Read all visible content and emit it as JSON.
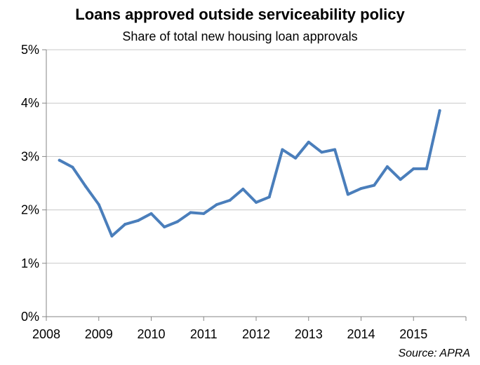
{
  "chart_data": {
    "type": "line",
    "title": "Loans approved outside serviceability policy",
    "subtitle": "Share of total new housing loan approvals",
    "source": "Source: APRA",
    "xlabel": "",
    "ylabel": "",
    "xlim": [
      2008,
      2016
    ],
    "ylim": [
      0,
      5
    ],
    "x_ticks": [
      2008,
      2009,
      2010,
      2011,
      2012,
      2013,
      2014,
      2015
    ],
    "x_tick_labels": [
      "2008",
      "2009",
      "2010",
      "2011",
      "2012",
      "2013",
      "2014",
      "2015"
    ],
    "y_ticks": [
      0,
      1,
      2,
      3,
      4,
      5
    ],
    "y_tick_labels": [
      "0%",
      "1%",
      "2%",
      "3%",
      "4%",
      "5%"
    ],
    "grid": "horizontal",
    "legend": "none",
    "line_color": "#4a7ebb",
    "series": [
      {
        "x": [
          2008.25,
          2008.5,
          2008.75,
          2009.0,
          2009.25,
          2009.5,
          2009.75,
          2010.0,
          2010.25,
          2010.5,
          2010.75,
          2011.0,
          2011.25,
          2011.5,
          2011.75,
          2012.0,
          2012.25,
          2012.5,
          2012.75,
          2013.0,
          2013.25,
          2013.5,
          2013.75,
          2014.0,
          2014.25,
          2014.5,
          2014.75,
          2015.0,
          2015.25,
          2015.5
        ],
        "values": [
          2.93,
          2.8,
          2.44,
          2.1,
          1.51,
          1.73,
          1.8,
          1.93,
          1.68,
          1.78,
          1.95,
          1.93,
          2.1,
          2.18,
          2.39,
          2.14,
          2.24,
          3.13,
          2.97,
          3.27,
          3.08,
          3.13,
          2.29,
          2.4,
          2.46,
          2.81,
          2.57,
          2.77,
          2.77,
          3.86
        ]
      }
    ]
  }
}
